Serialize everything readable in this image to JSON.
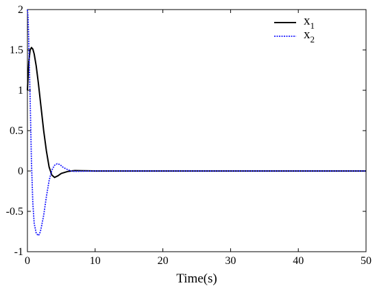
{
  "chart_data": {
    "type": "line",
    "xlabel": "Time(s)",
    "ylabel": "",
    "xlim": [
      0,
      50
    ],
    "ylim": [
      -1,
      2
    ],
    "xticks": [
      0,
      10,
      20,
      30,
      40,
      50
    ],
    "yticks": [
      -1,
      -0.5,
      0,
      0.5,
      1,
      1.5,
      2
    ],
    "xtick_labels": [
      "0",
      "10",
      "20",
      "30",
      "40",
      "50"
    ],
    "ytick_labels": [
      "-1",
      "-0.5",
      "0",
      "0.5",
      "1",
      "1.5",
      "2"
    ],
    "grid": false,
    "legend_position": "top-right",
    "series": [
      {
        "name": "x",
        "name_sub": "1",
        "color": "#000000",
        "dash": "solid",
        "x": [
          0,
          0.2,
          0.4,
          0.6,
          0.8,
          1.0,
          1.3,
          1.6,
          2.0,
          2.4,
          2.8,
          3.2,
          3.6,
          4.0,
          4.5,
          5.0,
          6.0,
          7.0,
          8.0,
          10.0,
          15.0,
          20.0,
          30.0,
          40.0,
          50.0
        ],
        "y": [
          1.0,
          1.35,
          1.5,
          1.53,
          1.51,
          1.45,
          1.3,
          1.1,
          0.8,
          0.5,
          0.25,
          0.05,
          -0.05,
          -0.08,
          -0.06,
          -0.03,
          -0.005,
          0.005,
          0.003,
          0.0,
          0.0,
          0.0,
          0.0,
          0.0,
          0.0
        ]
      },
      {
        "name": "x",
        "name_sub": "2",
        "color": "#1a1aff",
        "dash": "dotted",
        "x": [
          0,
          0.1,
          0.2,
          0.4,
          0.6,
          0.8,
          1.0,
          1.3,
          1.6,
          1.8,
          2.0,
          2.4,
          2.8,
          3.2,
          3.6,
          4.0,
          4.4,
          4.8,
          5.2,
          5.6,
          6.0,
          6.5,
          7.0,
          8.0,
          10.0,
          15.0,
          20.0,
          30.0,
          40.0,
          50.0
        ],
        "y": [
          2.0,
          1.9,
          1.6,
          0.9,
          0.1,
          -0.4,
          -0.65,
          -0.77,
          -0.8,
          -0.78,
          -0.72,
          -0.55,
          -0.32,
          -0.12,
          0.01,
          0.07,
          0.09,
          0.08,
          0.05,
          0.03,
          0.015,
          0.0,
          -0.005,
          -0.003,
          0.0,
          0.0,
          0.0,
          0.0,
          0.0,
          0.0
        ]
      }
    ]
  }
}
